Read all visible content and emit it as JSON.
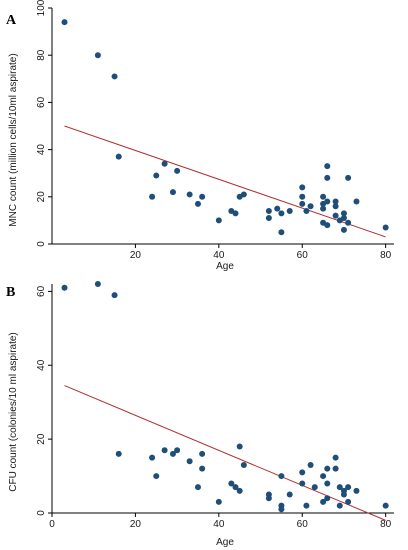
{
  "chart_data": [
    {
      "panel": "A",
      "type": "scatter",
      "xlabel": "Age",
      "ylabel": "MNC count (million cells/10ml aspirate)",
      "xlim": [
        0,
        82
      ],
      "ylim": [
        0,
        100
      ],
      "xticks": [
        20,
        40,
        60,
        80
      ],
      "yticks": [
        0,
        20,
        40,
        60,
        80,
        100
      ],
      "marker_color": "#1f4e79",
      "fit_line_color": "#b03030",
      "fit_line": {
        "x": [
          3,
          80
        ],
        "y": [
          50,
          3
        ]
      },
      "points": [
        [
          3,
          94
        ],
        [
          11,
          80
        ],
        [
          15,
          71
        ],
        [
          16,
          37
        ],
        [
          24,
          20
        ],
        [
          25,
          29
        ],
        [
          27,
          34
        ],
        [
          29,
          22
        ],
        [
          30,
          31
        ],
        [
          33,
          21
        ],
        [
          35,
          17
        ],
        [
          36,
          20
        ],
        [
          40,
          10
        ],
        [
          43,
          14
        ],
        [
          44,
          13
        ],
        [
          45,
          20
        ],
        [
          46,
          21
        ],
        [
          52,
          14
        ],
        [
          52,
          11
        ],
        [
          54,
          15
        ],
        [
          55,
          13
        ],
        [
          55,
          5
        ],
        [
          57,
          14
        ],
        [
          60,
          24
        ],
        [
          60,
          20
        ],
        [
          60,
          17
        ],
        [
          61,
          14
        ],
        [
          62,
          16
        ],
        [
          65,
          20
        ],
        [
          65,
          17
        ],
        [
          65,
          15
        ],
        [
          65,
          9
        ],
        [
          66,
          33
        ],
        [
          66,
          28
        ],
        [
          66,
          18
        ],
        [
          66,
          8
        ],
        [
          68,
          18
        ],
        [
          68,
          16
        ],
        [
          68,
          12
        ],
        [
          69,
          10
        ],
        [
          70,
          13
        ],
        [
          70,
          11
        ],
        [
          70,
          6
        ],
        [
          71,
          28
        ],
        [
          71,
          9
        ],
        [
          73,
          18
        ],
        [
          80,
          7
        ]
      ]
    },
    {
      "panel": "B",
      "type": "scatter",
      "xlabel": "Age",
      "ylabel": "CFU count (colonies/10 ml aspirate)",
      "xlim": [
        0,
        82
      ],
      "ylim": [
        0,
        62
      ],
      "xticks": [
        0,
        20,
        40,
        60,
        80
      ],
      "yticks": [
        0,
        20,
        40,
        60
      ],
      "marker_color": "#1f4e79",
      "fit_line_color": "#b03030",
      "fit_line": {
        "x": [
          3,
          80
        ],
        "y": [
          34.5,
          -2
        ]
      },
      "points": [
        [
          3,
          61
        ],
        [
          11,
          62
        ],
        [
          15,
          59
        ],
        [
          16,
          16
        ],
        [
          24,
          15
        ],
        [
          25,
          10
        ],
        [
          27,
          17
        ],
        [
          29,
          16
        ],
        [
          30,
          17
        ],
        [
          33,
          14
        ],
        [
          35,
          7
        ],
        [
          36,
          12
        ],
        [
          36,
          16
        ],
        [
          40,
          3
        ],
        [
          43,
          8
        ],
        [
          44,
          7
        ],
        [
          45,
          6
        ],
        [
          45,
          18
        ],
        [
          46,
          13
        ],
        [
          52,
          5
        ],
        [
          52,
          4
        ],
        [
          55,
          10
        ],
        [
          55,
          2
        ],
        [
          55,
          1
        ],
        [
          57,
          5
        ],
        [
          60,
          11
        ],
        [
          60,
          8
        ],
        [
          61,
          2
        ],
        [
          62,
          13
        ],
        [
          63,
          7
        ],
        [
          65,
          10
        ],
        [
          65,
          3
        ],
        [
          66,
          12
        ],
        [
          66,
          8
        ],
        [
          66,
          4
        ],
        [
          68,
          15
        ],
        [
          68,
          12
        ],
        [
          69,
          7
        ],
        [
          69,
          2
        ],
        [
          70,
          6
        ],
        [
          70,
          5
        ],
        [
          71,
          3
        ],
        [
          71,
          7
        ],
        [
          73,
          6
        ],
        [
          80,
          2
        ]
      ]
    }
  ],
  "panels": [
    {
      "letter": "A"
    },
    {
      "letter": "B"
    }
  ]
}
